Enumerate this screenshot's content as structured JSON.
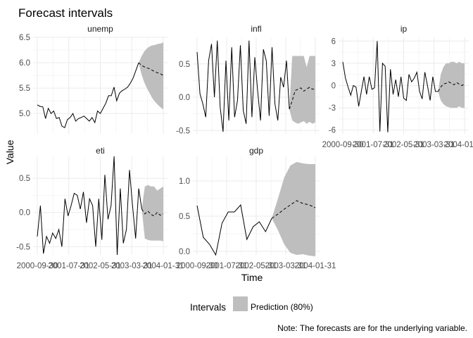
{
  "title": "Forecast intervals",
  "xlabel": "Time",
  "ylabel": "Value",
  "legend": {
    "title": "Intervals",
    "label": "Prediction (80%)",
    "color": "#bebebe"
  },
  "caption": "Note: The forecasts are for the underlying variable.",
  "x_tick_labels": [
    "2000-09-30",
    "2001-07-31",
    "2002-05-31",
    "2003-03-31",
    "2004-01-31"
  ],
  "line_color": "#000000",
  "grid_color": "#ebebeb",
  "chart_data": [
    {
      "type": "line",
      "panel": "unemp",
      "ylim": [
        4.6,
        6.5
      ],
      "yticks": [
        5.0,
        5.5,
        6.0,
        6.5
      ],
      "ytick_labels": [
        "5.0",
        "5.5",
        "6.0",
        "6.5"
      ],
      "history": [
        5.17,
        5.14,
        5.13,
        4.9,
        5.1,
        5.0,
        5.05,
        4.9,
        4.92,
        4.75,
        4.72,
        4.88,
        4.92,
        5.0,
        4.85,
        4.9,
        4.92,
        4.95,
        4.9,
        4.85,
        4.92,
        4.82,
        5.05,
        5.0,
        5.1,
        5.2,
        5.35,
        5.35,
        5.52,
        5.25,
        5.4,
        5.45,
        5.48,
        5.52,
        5.6,
        5.7,
        5.85,
        6.0
      ],
      "forecast": [
        6.0,
        5.95,
        5.92,
        5.9,
        5.88,
        5.85,
        5.82,
        5.8,
        5.78,
        5.75
      ],
      "lower": [
        6.0,
        5.78,
        5.62,
        5.5,
        5.4,
        5.3,
        5.23,
        5.17,
        5.12,
        5.08
      ],
      "upper": [
        6.0,
        6.12,
        6.22,
        6.28,
        6.32,
        6.34,
        6.35,
        6.37,
        6.38,
        6.4
      ]
    },
    {
      "type": "line",
      "panel": "infl",
      "ylim": [
        -0.55,
        0.9
      ],
      "yticks": [
        -0.5,
        0.0,
        0.5
      ],
      "ytick_labels": [
        "-0.5",
        "0.0",
        "0.5"
      ],
      "history": [
        0.68,
        0.05,
        -0.1,
        -0.3,
        0.55,
        0.8,
        0.0,
        0.85,
        -0.15,
        -0.52,
        0.55,
        -0.35,
        0.75,
        -0.3,
        -0.05,
        0.78,
        -0.2,
        -0.4,
        0.85,
        -0.3,
        0.6,
        0.1,
        -0.35,
        0.72,
        0.55,
        -0.28,
        0.75,
        -0.1,
        -0.35,
        0.3,
        0.15,
        0.55,
        -0.18
      ],
      "forecast": [
        -0.18,
        -0.05,
        0.1,
        0.12,
        0.14,
        0.09,
        0.12,
        0.15,
        0.12,
        0.13
      ],
      "lower": [
        -0.18,
        -0.35,
        -0.38,
        -0.4,
        -0.38,
        -0.36,
        -0.4,
        -0.37,
        -0.4,
        -0.38
      ],
      "upper": [
        -0.18,
        0.62,
        0.62,
        0.62,
        0.62,
        0.62,
        0.45,
        0.62,
        0.62,
        0.62
      ]
    },
    {
      "type": "line",
      "panel": "ip",
      "ylim": [
        -6.5,
        6.5
      ],
      "yticks": [
        -6,
        -3,
        0,
        3,
        6
      ],
      "ytick_labels": [
        "-6",
        "-3",
        "0",
        "3",
        "6"
      ],
      "history": [
        3.2,
        1.0,
        -0.2,
        -1.3,
        0.0,
        -0.2,
        -2.8,
        -0.8,
        1.2,
        -1.2,
        1.2,
        -0.5,
        -0.3,
        6.0,
        -6.2,
        3.0,
        2.6,
        -6.3,
        2.2,
        -1.2,
        0.8,
        -1.5,
        1.2,
        -1.7,
        -2.0,
        1.5,
        0.5,
        1.0,
        1.8,
        -0.8,
        -1.8,
        1.8,
        0.0,
        -2.0,
        1.2,
        -0.8,
        -0.8
      ],
      "forecast": [
        -0.8,
        -0.2,
        0.2,
        0.3,
        0.5,
        0.3,
        0.1,
        0.4,
        0.2,
        0.0,
        0.2
      ],
      "lower": [
        -0.8,
        -2.0,
        -2.5,
        -2.8,
        -2.9,
        -3.0,
        -3.0,
        -3.0,
        -2.8,
        -3.0,
        -3.0
      ],
      "upper": [
        -0.8,
        1.5,
        2.5,
        3.0,
        3.0,
        3.2,
        3.2,
        3.0,
        3.2,
        3.0,
        3.0
      ]
    },
    {
      "type": "line",
      "panel": "eti",
      "ylim": [
        -0.62,
        0.82
      ],
      "yticks": [
        -0.5,
        0.0,
        0.5
      ],
      "ytick_labels": [
        "-0.5",
        "0.0",
        "0.5"
      ],
      "history": [
        -0.35,
        0.1,
        -0.6,
        -0.35,
        -0.45,
        -0.3,
        -0.38,
        -0.25,
        -0.5,
        0.2,
        -0.05,
        0.1,
        0.28,
        0.25,
        0.05,
        0.3,
        -0.15,
        0.2,
        0.1,
        -0.5,
        0.2,
        -0.4,
        0.55,
        -0.1,
        0.1,
        0.82,
        -0.62,
        0.35,
        -0.45,
        -0.25,
        0.62,
        0.1,
        -0.38,
        0.35,
        0.05
      ],
      "forecast": [
        0.05,
        -0.02,
        0.02,
        -0.03,
        -0.05,
        0.0,
        -0.04,
        -0.02
      ],
      "lower": [
        0.05,
        -0.38,
        -0.4,
        -0.41,
        -0.41,
        -0.41,
        -0.41,
        -0.42
      ],
      "upper": [
        0.05,
        0.38,
        0.4,
        0.38,
        0.38,
        0.32,
        0.35,
        0.38
      ]
    },
    {
      "type": "line",
      "panel": "gdp",
      "ylim": [
        -0.05,
        1.35
      ],
      "yticks": [
        0.0,
        0.5,
        1.0
      ],
      "ytick_labels": [
        "0.0",
        "0.5",
        "1.0"
      ],
      "history": [
        0.65,
        0.2,
        0.1,
        -0.05,
        0.4,
        0.56,
        0.56,
        0.66,
        0.17,
        0.35,
        0.42,
        0.28,
        0.47
      ],
      "forecast": [
        0.47,
        0.53,
        0.6,
        0.66,
        0.72,
        0.68,
        0.66,
        0.62
      ],
      "lower": [
        0.47,
        0.3,
        0.1,
        -0.02,
        -0.05,
        -0.04,
        -0.06,
        -0.07
      ],
      "upper": [
        0.47,
        0.75,
        1.05,
        1.22,
        1.27,
        1.25,
        1.24,
        1.24
      ]
    }
  ]
}
